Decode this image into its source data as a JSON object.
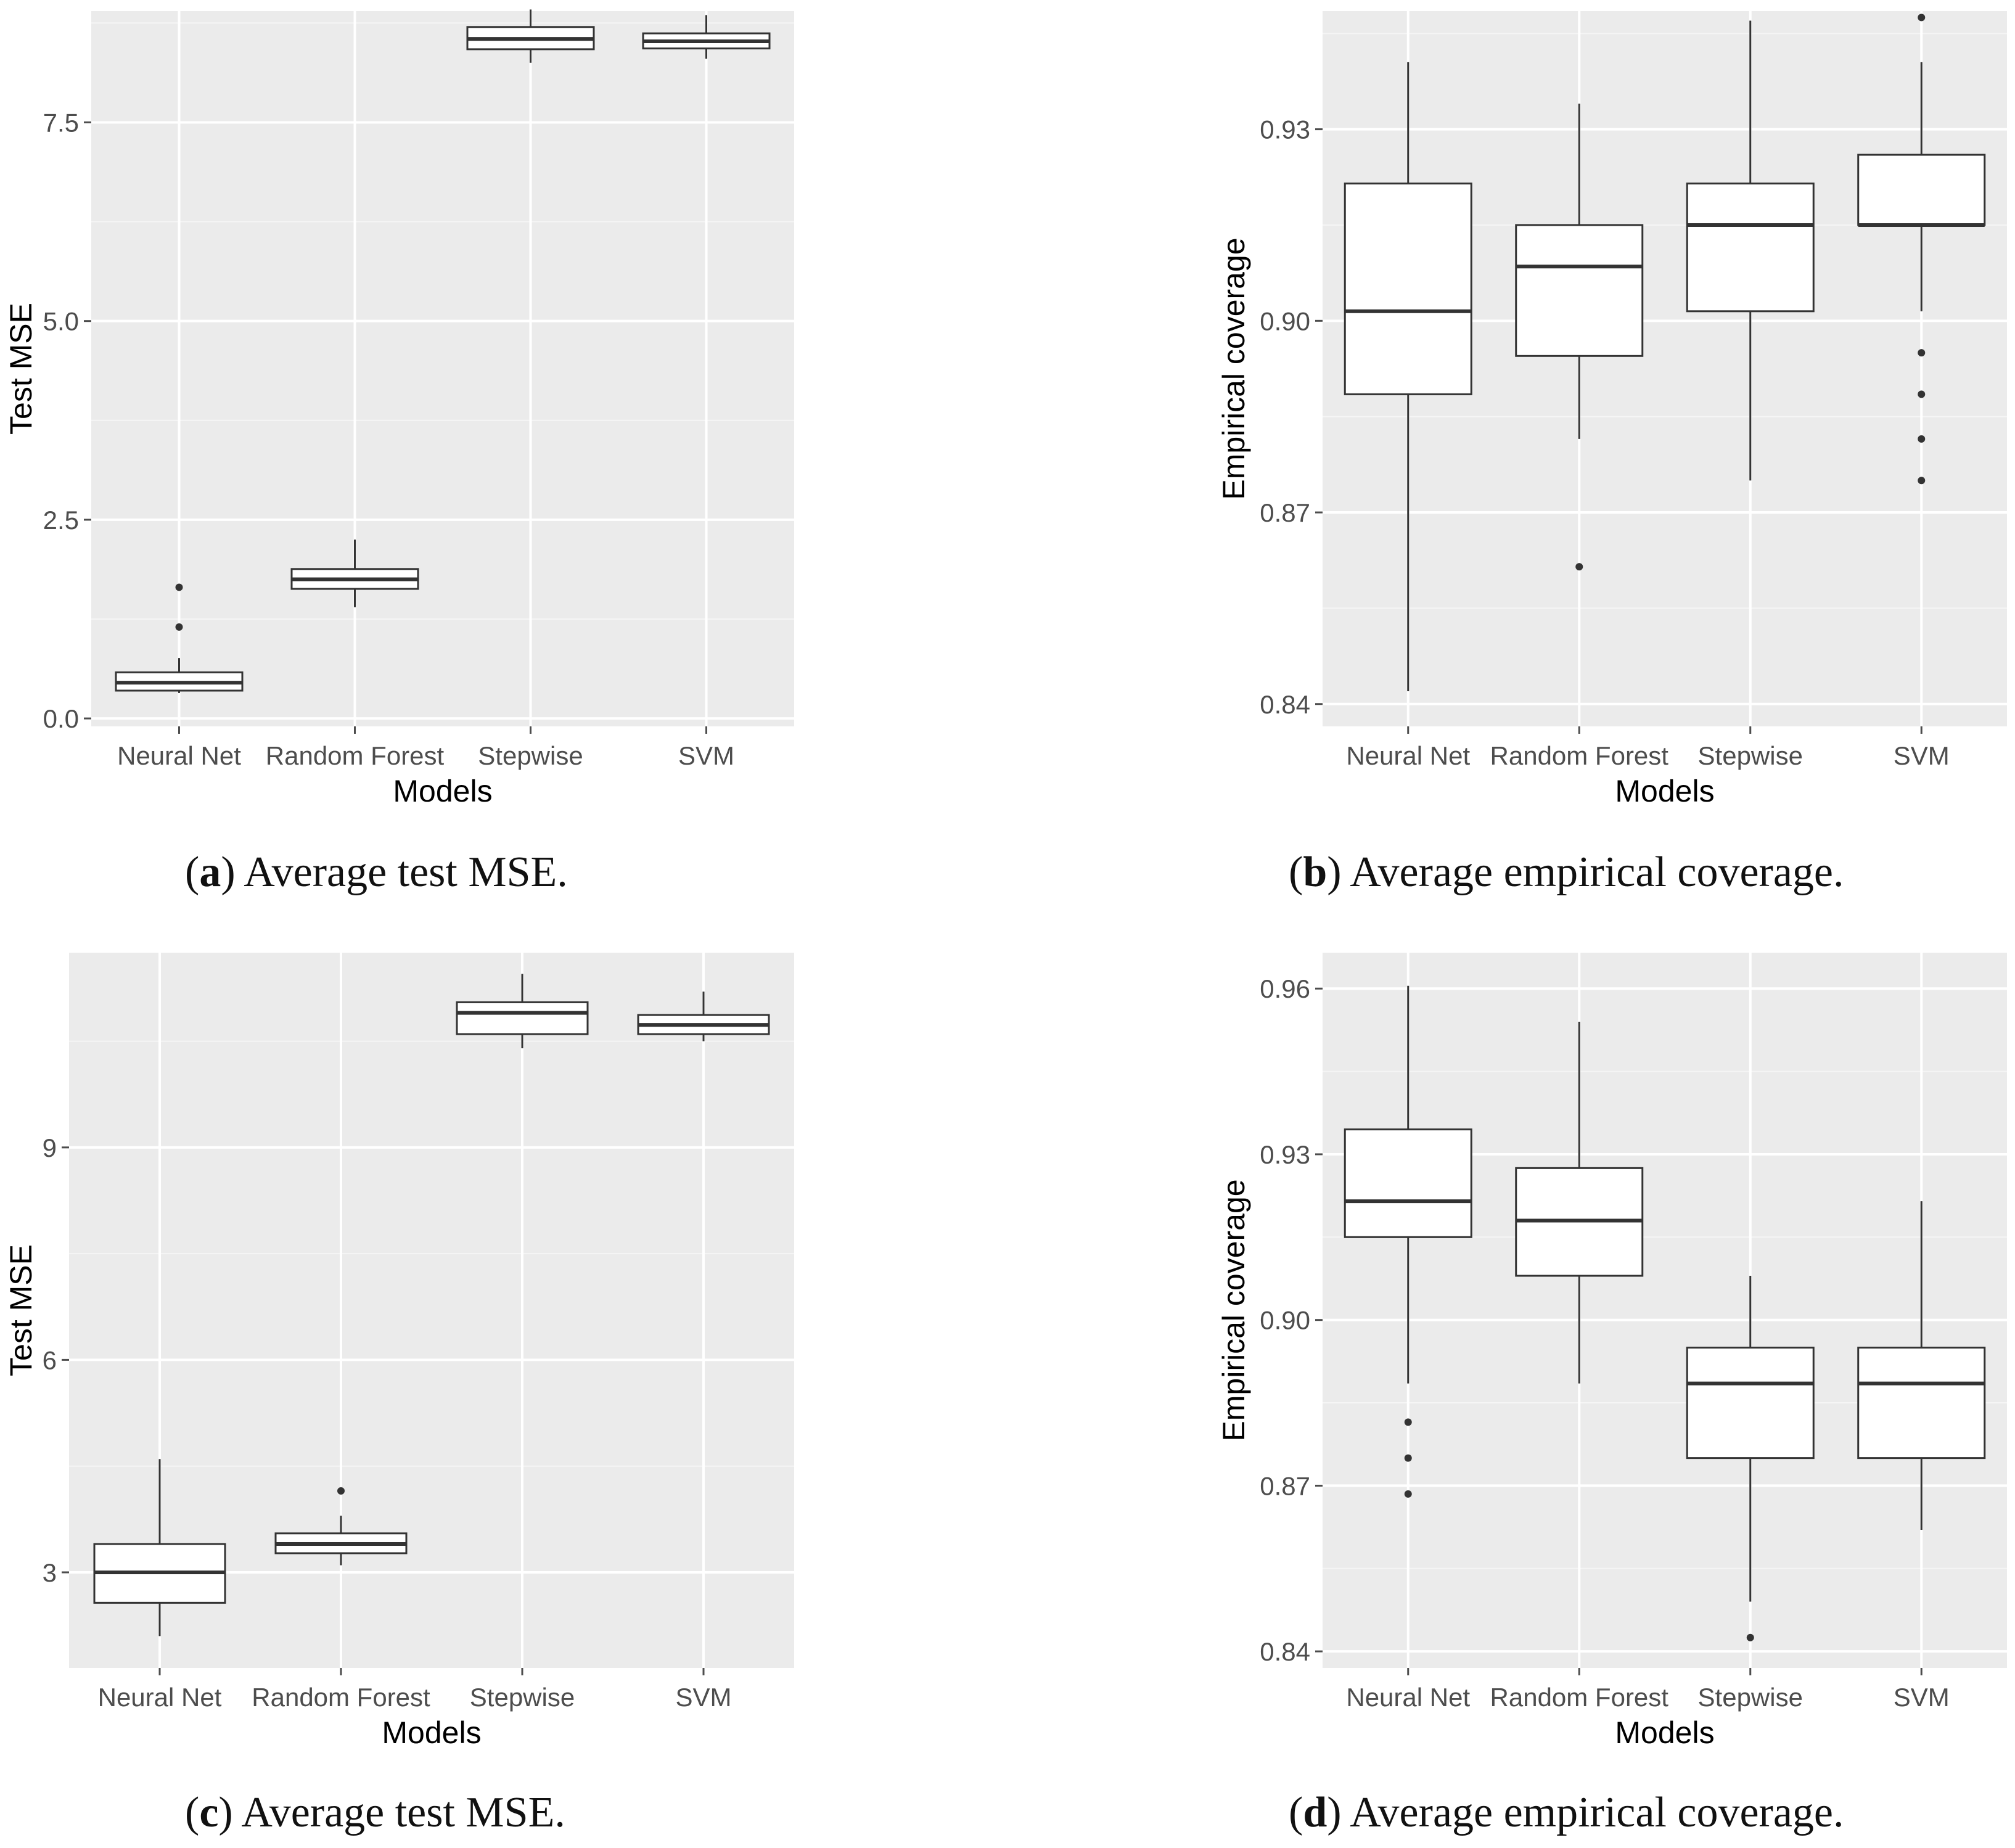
{
  "chart_data": [
    {
      "id": "a",
      "type": "boxplot",
      "categories": [
        "Neural Net",
        "Random Forest",
        "Stepwise",
        "SVM"
      ],
      "xlabel": "Models",
      "ylabel": "Test MSE",
      "ylim": [
        -0.1,
        8.9
      ],
      "yticks": [
        0.0,
        2.5,
        5.0,
        7.5
      ],
      "ytick_labels": [
        "0.0",
        "2.5",
        "5.0",
        "7.5"
      ],
      "minor_gridlines": true,
      "boxes": [
        {
          "whisker_low": 0.32,
          "q1": 0.35,
          "median": 0.45,
          "q3": 0.58,
          "whisker_high": 0.76,
          "outliers": [
            1.15,
            1.65
          ]
        },
        {
          "whisker_low": 1.4,
          "q1": 1.63,
          "median": 1.75,
          "q3": 1.88,
          "whisker_high": 2.25,
          "outliers": []
        },
        {
          "whisker_low": 8.25,
          "q1": 8.42,
          "median": 8.55,
          "q3": 8.7,
          "whisker_high": 8.92,
          "outliers": []
        },
        {
          "whisker_low": 8.3,
          "q1": 8.43,
          "median": 8.52,
          "q3": 8.62,
          "whisker_high": 8.85,
          "outliers": []
        }
      ],
      "caption_letter": "a",
      "caption_text": "Average test MSE."
    },
    {
      "id": "b",
      "type": "boxplot",
      "categories": [
        "Neural Net",
        "Random Forest",
        "Stepwise",
        "SVM"
      ],
      "xlabel": "Models",
      "ylabel": "Empirical coverage",
      "ylim": [
        0.8365,
        0.9485
      ],
      "yticks": [
        0.84,
        0.87,
        0.9,
        0.93
      ],
      "ytick_labels": [
        "0.84",
        "0.87",
        "0.90",
        "0.93"
      ],
      "minor_gridlines": true,
      "boxes": [
        {
          "whisker_low": 0.842,
          "q1": 0.8885,
          "median": 0.9015,
          "q3": 0.9215,
          "whisker_high": 0.9405,
          "outliers": []
        },
        {
          "whisker_low": 0.8815,
          "q1": 0.8945,
          "median": 0.9085,
          "q3": 0.915,
          "whisker_high": 0.934,
          "outliers": [
            0.8615
          ]
        },
        {
          "whisker_low": 0.875,
          "q1": 0.9015,
          "median": 0.915,
          "q3": 0.9215,
          "whisker_high": 0.947,
          "outliers": []
        },
        {
          "whisker_low": 0.9015,
          "q1": 0.915,
          "median": 0.915,
          "q3": 0.926,
          "whisker_high": 0.9405,
          "outliers": [
            0.875,
            0.8815,
            0.8885,
            0.895,
            0.9475
          ]
        }
      ],
      "caption_letter": "b",
      "caption_text": "Average empirical coverage."
    },
    {
      "id": "c",
      "type": "boxplot",
      "categories": [
        "Neural Net",
        "Random Forest",
        "Stepwise",
        "SVM"
      ],
      "xlabel": "Models",
      "ylabel": "Test MSE",
      "ylim": [
        1.65,
        11.75
      ],
      "yticks": [
        3,
        6,
        9
      ],
      "ytick_labels": [
        "3",
        "6",
        "9"
      ],
      "minor_gridlines": true,
      "boxes": [
        {
          "whisker_low": 2.1,
          "q1": 2.57,
          "median": 3.0,
          "q3": 3.4,
          "whisker_high": 4.6,
          "outliers": []
        },
        {
          "whisker_low": 3.1,
          "q1": 3.27,
          "median": 3.4,
          "q3": 3.55,
          "whisker_high": 3.8,
          "outliers": [
            4.15
          ]
        },
        {
          "whisker_low": 10.4,
          "q1": 10.6,
          "median": 10.9,
          "q3": 11.05,
          "whisker_high": 11.45,
          "outliers": []
        },
        {
          "whisker_low": 10.5,
          "q1": 10.6,
          "median": 10.73,
          "q3": 10.87,
          "whisker_high": 11.2,
          "outliers": []
        }
      ],
      "caption_letter": "c",
      "caption_text": "Average test MSE."
    },
    {
      "id": "d",
      "type": "boxplot",
      "categories": [
        "Neural Net",
        "Random Forest",
        "Stepwise",
        "SVM"
      ],
      "xlabel": "Models",
      "ylabel": "Empirical coverage",
      "ylim": [
        0.837,
        0.9665
      ],
      "yticks": [
        0.84,
        0.87,
        0.9,
        0.93,
        0.96
      ],
      "ytick_labels": [
        "0.84",
        "0.87",
        "0.90",
        "0.93",
        "0.96"
      ],
      "minor_gridlines": true,
      "boxes": [
        {
          "whisker_low": 0.8885,
          "q1": 0.915,
          "median": 0.9215,
          "q3": 0.9345,
          "whisker_high": 0.9605,
          "outliers": [
            0.8685,
            0.875,
            0.8815
          ]
        },
        {
          "whisker_low": 0.8885,
          "q1": 0.908,
          "median": 0.918,
          "q3": 0.9275,
          "whisker_high": 0.954,
          "outliers": []
        },
        {
          "whisker_low": 0.849,
          "q1": 0.875,
          "median": 0.8885,
          "q3": 0.895,
          "whisker_high": 0.908,
          "outliers": [
            0.8425
          ]
        },
        {
          "whisker_low": 0.862,
          "q1": 0.875,
          "median": 0.8885,
          "q3": 0.895,
          "whisker_high": 0.9215,
          "outliers": []
        }
      ],
      "caption_letter": "d",
      "caption_text": "Average empirical coverage."
    }
  ],
  "colors": {
    "panel_background": "#ebebeb",
    "grid_major": "#ffffff",
    "grid_minor": "#f5f5f5",
    "box_fill": "#ffffff",
    "box_stroke": "#333333",
    "axis_text": "#4d4d4d",
    "title_text": "#000000"
  }
}
